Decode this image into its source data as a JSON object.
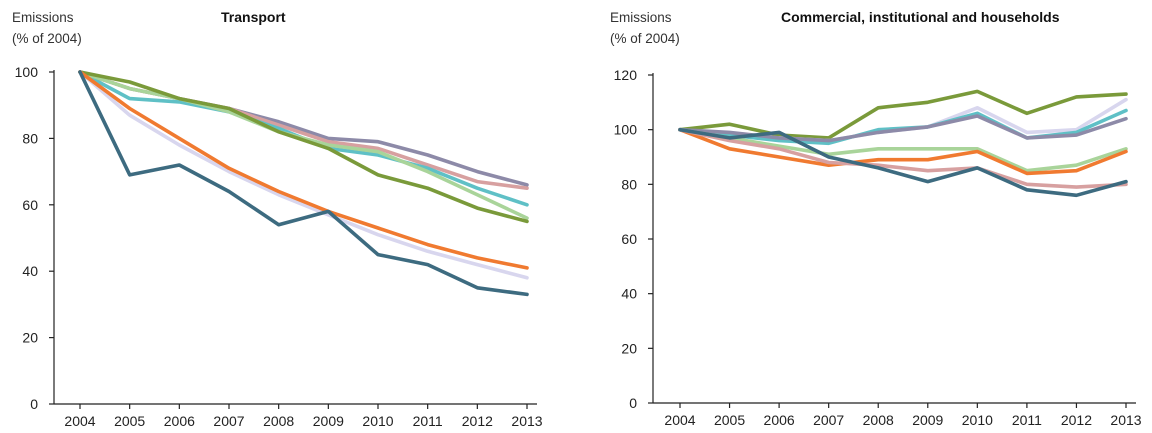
{
  "chart_data": [
    {
      "type": "line",
      "title": "Transport",
      "ylabel_lines": [
        "Emissions",
        "(% of 2004)"
      ],
      "xlabel": "",
      "x": [
        "2004",
        "2005",
        "2006",
        "2007",
        "2008",
        "2009",
        "2010",
        "2011",
        "2012",
        "2013"
      ],
      "ylim": [
        0,
        100
      ],
      "yticks": [
        0,
        20,
        40,
        60,
        80,
        100
      ],
      "grid": false,
      "series": [
        {
          "color": "#8d8aa8",
          "values": [
            100,
            95,
            92,
            89,
            85,
            80,
            79,
            75,
            70,
            66
          ]
        },
        {
          "color": "#d7a0a0",
          "values": [
            100,
            95,
            92,
            89,
            84,
            79,
            77,
            72,
            67,
            65
          ]
        },
        {
          "color": "#5fc0c6",
          "values": [
            100,
            92,
            91,
            88,
            83,
            77,
            75,
            71,
            65,
            60
          ]
        },
        {
          "color": "#a9d49a",
          "values": [
            100,
            95,
            92,
            88,
            82,
            78,
            76,
            70,
            63,
            56
          ]
        },
        {
          "color": "#7a9a3a",
          "values": [
            100,
            97,
            92,
            89,
            82,
            77,
            69,
            65,
            59,
            55
          ]
        },
        {
          "color": "#d8d6ee",
          "values": [
            100,
            87,
            78,
            70,
            63,
            57,
            51,
            46,
            42,
            38
          ]
        },
        {
          "color": "#f07a30",
          "values": [
            100,
            89,
            80,
            71,
            64,
            58,
            53,
            48,
            44,
            41
          ]
        },
        {
          "color": "#3d6b80",
          "values": [
            100,
            69,
            72,
            64,
            54,
            58,
            45,
            42,
            35,
            33
          ]
        }
      ]
    },
    {
      "type": "line",
      "title": "Commercial, institutional and households",
      "ylabel_lines": [
        "Emissions",
        "(% of 2004)"
      ],
      "xlabel": "",
      "x": [
        "2004",
        "2005",
        "2006",
        "2007",
        "2008",
        "2009",
        "2010",
        "2011",
        "2012",
        "2013"
      ],
      "ylim": [
        0,
        120
      ],
      "yticks": [
        0,
        20,
        40,
        60,
        80,
        100,
        120
      ],
      "grid": false,
      "series": [
        {
          "color": "#7a9a3a",
          "values": [
            100,
            102,
            98,
            97,
            108,
            110,
            114,
            106,
            112,
            113
          ]
        },
        {
          "color": "#d8d6ee",
          "values": [
            100,
            98,
            97,
            96,
            99,
            101,
            108,
            99,
            100,
            111
          ]
        },
        {
          "color": "#5fc0c6",
          "values": [
            100,
            98,
            96,
            95,
            100,
            101,
            106,
            97,
            99,
            107
          ]
        },
        {
          "color": "#8d8aa8",
          "values": [
            100,
            99,
            97,
            96,
            99,
            101,
            105,
            97,
            98,
            104
          ]
        },
        {
          "color": "#a9d49a",
          "values": [
            100,
            97,
            94,
            91,
            93,
            93,
            93,
            85,
            87,
            93
          ]
        },
        {
          "color": "#f07a30",
          "values": [
            100,
            93,
            90,
            87,
            89,
            89,
            92,
            84,
            85,
            92
          ]
        },
        {
          "color": "#d7a0a0",
          "values": [
            100,
            96,
            93,
            88,
            87,
            85,
            86,
            80,
            79,
            80
          ]
        },
        {
          "color": "#3d6b80",
          "values": [
            100,
            97,
            99,
            90,
            86,
            81,
            86,
            78,
            76,
            81
          ]
        }
      ]
    }
  ]
}
